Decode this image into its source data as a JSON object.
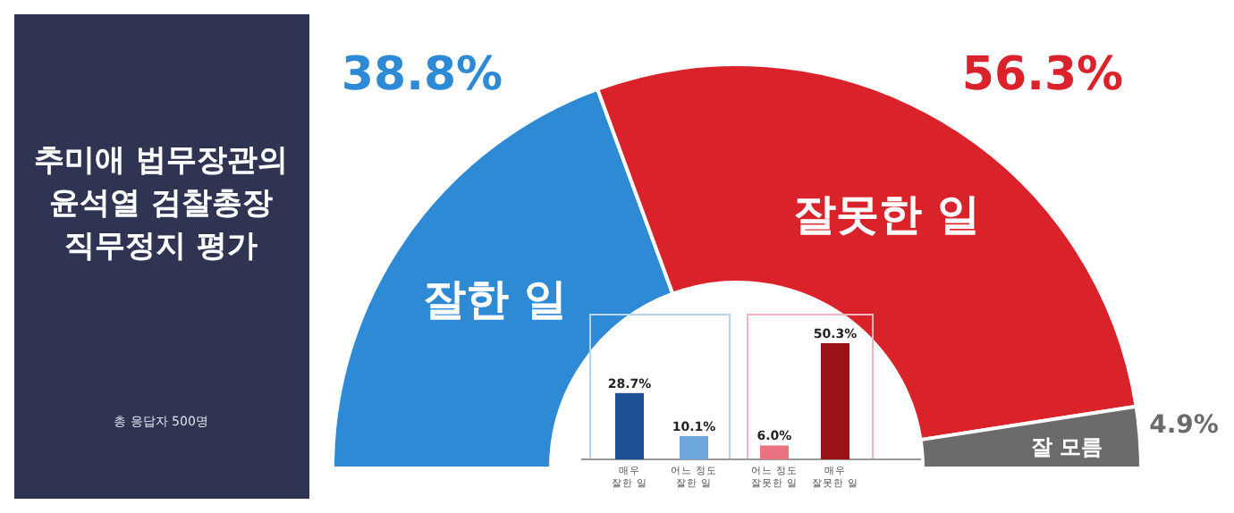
{
  "chart_data": [
    {
      "type": "donut",
      "title": "추미애 법무장관의\n윤석열 검찰총장\n직무정지 평가",
      "annotations": [
        "총 응답자 500명"
      ],
      "categories": [
        "잘한 일",
        "잘못한 일",
        "잘 모름"
      ],
      "values": [
        38.8,
        56.3,
        4.9
      ],
      "value_labels": [
        "38.8%",
        "56.3%",
        "4.9%"
      ],
      "colors": [
        "#2f8ad6",
        "#d9222a",
        "#6b6b6b"
      ]
    },
    {
      "type": "bar",
      "categories": [
        "매우\n잘한 일",
        "어느 정도\n잘한 일",
        "어느 정도\n잘못한 일",
        "매우\n잘못한 일"
      ],
      "values": [
        28.7,
        10.1,
        6.0,
        50.3
      ],
      "value_labels": [
        "28.7%",
        "10.1%",
        "6.0%",
        "50.3%"
      ],
      "colors": [
        "#1d4f94",
        "#6ea6de",
        "#e9737f",
        "#9b1118"
      ]
    }
  ]
}
